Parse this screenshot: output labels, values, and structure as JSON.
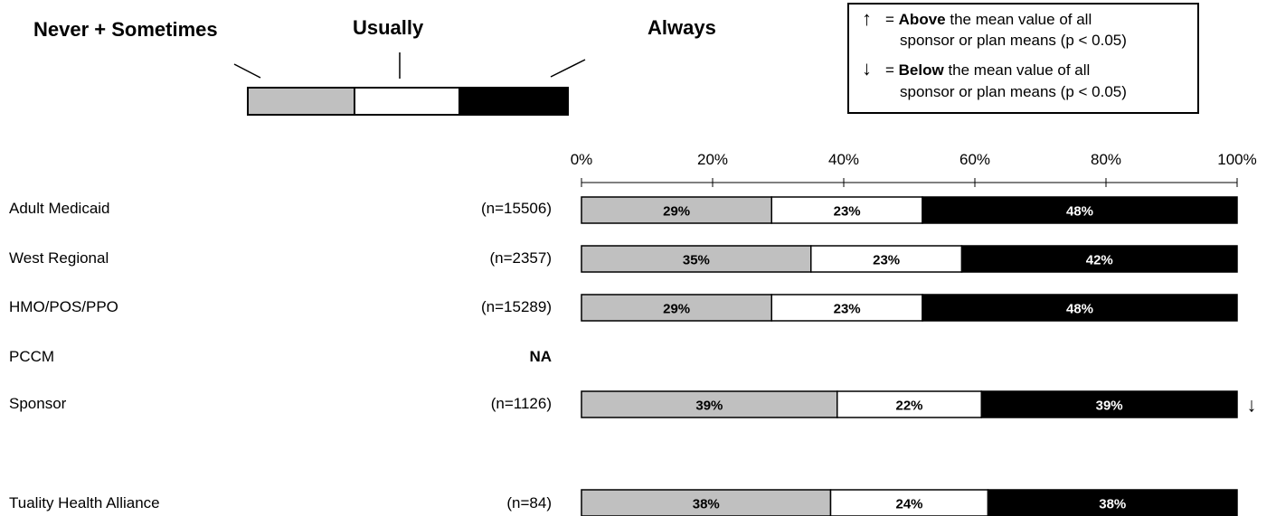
{
  "key": {
    "labels": [
      "Never + Sometimes",
      "Usually",
      "Always"
    ],
    "colors": [
      "#c0c0c0",
      "#ffffff",
      "#000000"
    ]
  },
  "legend": {
    "up_symbol": "↑",
    "up_text_pre": "= ",
    "up_bold": "Above",
    "up_text_post": " the mean value of all",
    "up_line2": "sponsor or plan means (p < 0.05)",
    "down_symbol": "↓",
    "down_text_pre": "= ",
    "down_bold": "Below",
    "down_text_post": " the mean value of all",
    "down_line2": "sponsor or plan means (p < 0.05)"
  },
  "chart_data": {
    "type": "bar",
    "orientation": "horizontal",
    "stacked": true,
    "xlim": [
      0,
      100
    ],
    "x_ticks": [
      "0%",
      "20%",
      "40%",
      "60%",
      "80%",
      "100%"
    ],
    "series": [
      {
        "name": "Never + Sometimes",
        "color": "#c0c0c0"
      },
      {
        "name": "Usually",
        "color": "#ffffff"
      },
      {
        "name": "Always",
        "color": "#000000"
      }
    ],
    "rows": [
      {
        "label": "Adult Medicaid",
        "n": "(n=15506)",
        "values": [
          29,
          23,
          48
        ],
        "labels": [
          "29%",
          "23%",
          "48%"
        ],
        "flag": ""
      },
      {
        "label": "West Regional",
        "n": "(n=2357)",
        "values": [
          35,
          23,
          42
        ],
        "labels": [
          "35%",
          "23%",
          "42%"
        ],
        "flag": ""
      },
      {
        "label": "HMO/POS/PPO",
        "n": "(n=15289)",
        "values": [
          29,
          23,
          48
        ],
        "labels": [
          "29%",
          "23%",
          "48%"
        ],
        "flag": ""
      },
      {
        "label": "PCCM",
        "n": "NA",
        "values": null,
        "labels": null,
        "flag": ""
      },
      {
        "label": "Sponsor",
        "n": "(n=1126)",
        "values": [
          39,
          22,
          39
        ],
        "labels": [
          "39%",
          "22%",
          "39%"
        ],
        "flag": "↓"
      },
      {
        "label": "Tuality Health Alliance",
        "n": "(n=84)",
        "values": [
          38,
          24,
          38
        ],
        "labels": [
          "38%",
          "24%",
          "38%"
        ],
        "flag": ""
      }
    ]
  }
}
